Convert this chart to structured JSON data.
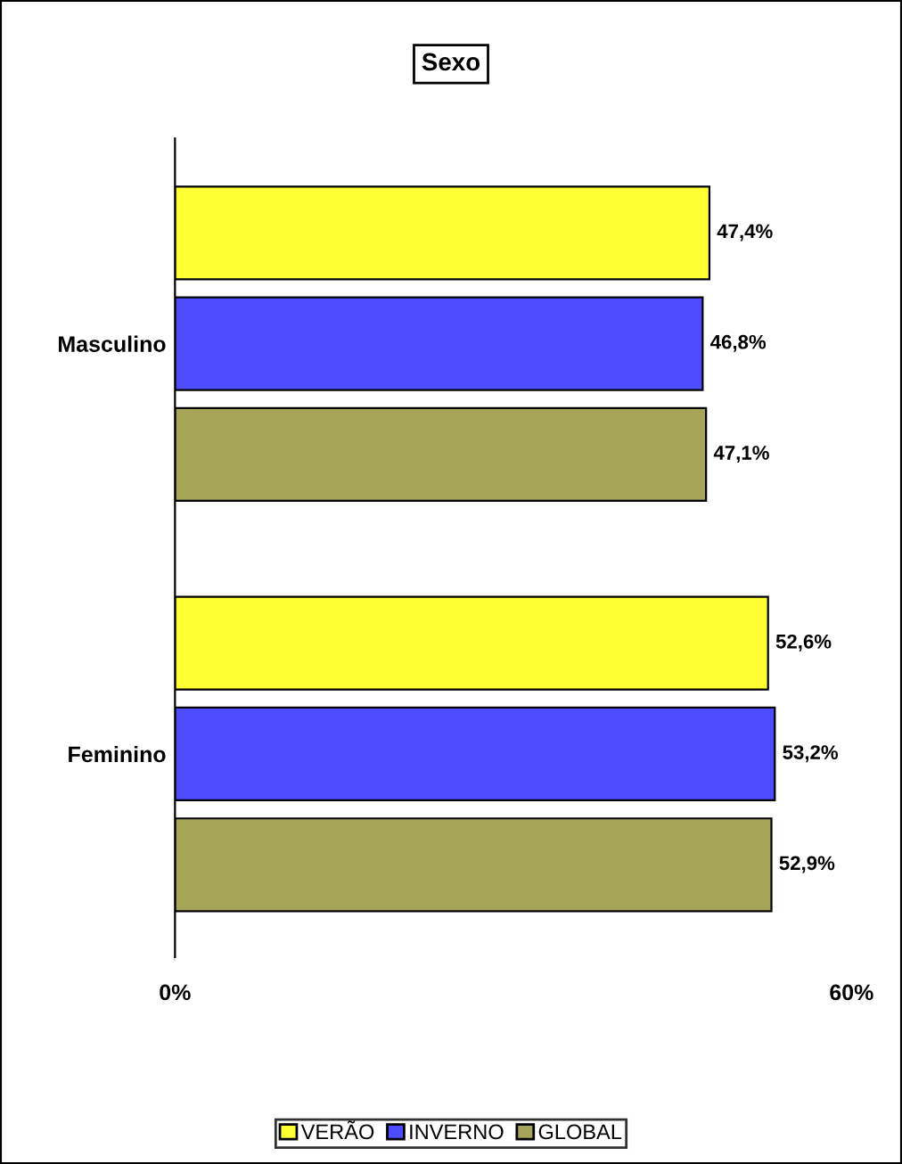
{
  "chart_data": {
    "type": "bar",
    "orientation": "horizontal",
    "title": "Sexo",
    "categories": [
      "Masculino",
      "Feminino"
    ],
    "series": [
      {
        "name": "VERÃO",
        "color": "#ffff33",
        "values": [
          47.4,
          52.6
        ],
        "value_labels": [
          "47,4%",
          "52,6%"
        ]
      },
      {
        "name": "INVERNO",
        "color": "#4d4dff",
        "values": [
          46.8,
          53.2
        ],
        "value_labels": [
          "46,8%",
          "53,2%"
        ]
      },
      {
        "name": "GLOBAL",
        "color": "#a6a659",
        "values": [
          47.1,
          52.9
        ],
        "value_labels": [
          "47,1%",
          "52,9%"
        ]
      }
    ],
    "xlim": [
      0,
      60
    ],
    "xticks": [
      {
        "value": 0,
        "label": "0%"
      },
      {
        "value": 60,
        "label": "60%"
      }
    ],
    "grid": false,
    "legend": "bottom"
  }
}
